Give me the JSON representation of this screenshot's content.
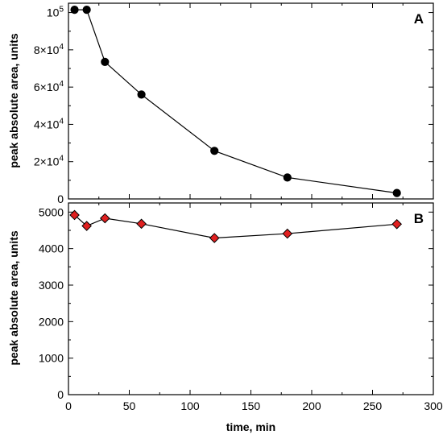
{
  "chart_data": [
    {
      "panel": "A",
      "type": "line",
      "ylabel": "peak absolute area, units",
      "ylim": [
        0,
        105000
      ],
      "yticks": [
        {
          "value": 0,
          "label": "0"
        },
        {
          "value": 20000,
          "base": "2×10",
          "exp": "4"
        },
        {
          "value": 40000,
          "base": "4×10",
          "exp": "4"
        },
        {
          "value": 60000,
          "base": "6×10",
          "exp": "4"
        },
        {
          "value": 80000,
          "base": "8×10",
          "exp": "4"
        },
        {
          "value": 100000,
          "base": "10",
          "exp": "5"
        }
      ],
      "marker": "circle",
      "marker_color": "#000000",
      "x": [
        5,
        15,
        30,
        60,
        120,
        180,
        270
      ],
      "y": [
        101500,
        101500,
        73500,
        56000,
        25800,
        11500,
        3200
      ],
      "xlim": [
        0,
        300
      ],
      "xticks": [
        0,
        50,
        100,
        150,
        200,
        250,
        300
      ],
      "xticklabels_shown": false
    },
    {
      "panel": "B",
      "type": "line",
      "xlabel": "time, min",
      "ylabel": "peak absolute area, units",
      "ylim": [
        0,
        5250
      ],
      "yticks": [
        {
          "value": 0,
          "label": "0"
        },
        {
          "value": 1000,
          "label": "1000"
        },
        {
          "value": 2000,
          "label": "2000"
        },
        {
          "value": 3000,
          "label": "3000"
        },
        {
          "value": 4000,
          "label": "4000"
        },
        {
          "value": 5000,
          "label": "5000"
        }
      ],
      "marker": "diamond",
      "marker_color": "#e02020",
      "x": [
        5,
        15,
        30,
        60,
        120,
        180,
        270
      ],
      "y": [
        4920,
        4620,
        4830,
        4680,
        4290,
        4410,
        4670
      ],
      "xlim": [
        0,
        300
      ],
      "xticks": [
        0,
        50,
        100,
        150,
        200,
        250,
        300
      ],
      "xticklabels": [
        "0",
        "50",
        "100",
        "150",
        "200",
        "250",
        "300"
      ]
    }
  ]
}
